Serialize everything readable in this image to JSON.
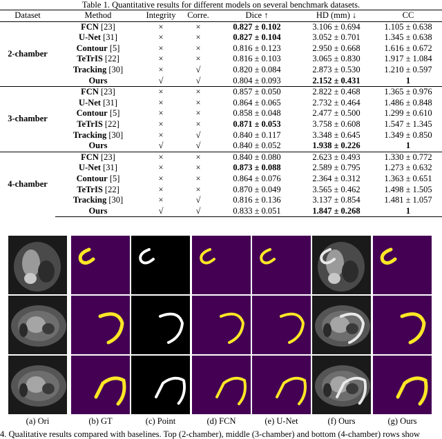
{
  "table_caption": "Table 1. Quantitative results for different models on several benchmark datasets.",
  "headers": [
    "Dataset",
    "Method",
    "Integrity",
    "Corre.",
    "Dice ↑",
    "HD (mm) ↓",
    "CC"
  ],
  "groups": [
    {
      "dataset": "2-chamber",
      "rows": [
        {
          "method": "FCN",
          "ref": "[23]",
          "integrity": "×",
          "corre": "×",
          "dice": "0.827 ± 0.102",
          "dice_bold": true,
          "hd": "3.106 ± 0.694",
          "hd_bold": false,
          "cc": "1.105 ± 0.638",
          "cc_bold": false
        },
        {
          "method": "U-Net",
          "ref": "[31]",
          "integrity": "×",
          "corre": "×",
          "dice": "0.827 ± 0.104",
          "dice_bold": true,
          "hd": "3.052 ± 0.701",
          "hd_bold": false,
          "cc": "1.345 ± 0.638",
          "cc_bold": false
        },
        {
          "method": "Contour",
          "ref": "[5]",
          "integrity": "×",
          "corre": "×",
          "dice": "0.816 ± 0.123",
          "dice_bold": false,
          "hd": "2.950 ± 0.668",
          "hd_bold": false,
          "cc": "1.616 ± 0.672",
          "cc_bold": false
        },
        {
          "method": "TeTrIS",
          "ref": "[22]",
          "integrity": "×",
          "corre": "×",
          "dice": "0.816 ± 0.103",
          "dice_bold": false,
          "hd": "3.065 ± 0.830",
          "hd_bold": false,
          "cc": "1.917 ± 1.084",
          "cc_bold": false
        },
        {
          "method": "Tracking",
          "ref": "[30]",
          "integrity": "×",
          "corre": "√",
          "dice": "0.820 ± 0.084",
          "dice_bold": false,
          "hd": "2.873 ± 0.530",
          "hd_bold": false,
          "cc": "1.210 ± 0.597",
          "cc_bold": false
        },
        {
          "method": "Ours",
          "ref": "",
          "integrity": "√",
          "corre": "√",
          "dice": "0.804 ± 0.093",
          "dice_bold": false,
          "hd": "2.152 ± 0.431",
          "hd_bold": true,
          "cc": "1",
          "cc_bold": true
        }
      ]
    },
    {
      "dataset": "3-chamber",
      "rows": [
        {
          "method": "FCN",
          "ref": "[23]",
          "integrity": "×",
          "corre": "×",
          "dice": "0.857 ± 0.050",
          "dice_bold": false,
          "hd": "2.822 ± 0.468",
          "hd_bold": false,
          "cc": "1.365 ± 0.976",
          "cc_bold": false
        },
        {
          "method": "U-Net",
          "ref": "[31]",
          "integrity": "×",
          "corre": "×",
          "dice": "0.864 ± 0.065",
          "dice_bold": false,
          "hd": "2.732 ± 0.464",
          "hd_bold": false,
          "cc": "1.486 ± 0.848",
          "cc_bold": false
        },
        {
          "method": "Contour",
          "ref": "[5]",
          "integrity": "×",
          "corre": "×",
          "dice": "0.858 ± 0.048",
          "dice_bold": false,
          "hd": "2.477 ± 0.500",
          "hd_bold": false,
          "cc": "1.299 ± 0.610",
          "cc_bold": false
        },
        {
          "method": "TeTrIS",
          "ref": "[22]",
          "integrity": "×",
          "corre": "×",
          "dice": "0.871 ± 0.053",
          "dice_bold": true,
          "hd": "3.758 ± 0.608",
          "hd_bold": false,
          "cc": "1.547 ± 1.345",
          "cc_bold": false
        },
        {
          "method": "Tracking",
          "ref": "[30]",
          "integrity": "×",
          "corre": "√",
          "dice": "0.840 ± 0.117",
          "dice_bold": false,
          "hd": "3.348 ± 0.645",
          "hd_bold": false,
          "cc": "1.349 ± 0.850",
          "cc_bold": false
        },
        {
          "method": "Ours",
          "ref": "",
          "integrity": "√",
          "corre": "√",
          "dice": "0.840 ± 0.052",
          "dice_bold": false,
          "hd": "1.938 ± 0.226",
          "hd_bold": true,
          "cc": "1",
          "cc_bold": true
        }
      ]
    },
    {
      "dataset": "4-chamber",
      "rows": [
        {
          "method": "FCN",
          "ref": "[23]",
          "integrity": "×",
          "corre": "×",
          "dice": "0.840 ± 0.080",
          "dice_bold": false,
          "hd": "2.623 ± 0.493",
          "hd_bold": false,
          "cc": "1.330 ± 0.772",
          "cc_bold": false
        },
        {
          "method": "U-Net",
          "ref": "[31]",
          "integrity": "×",
          "corre": "×",
          "dice": "0.873 ± 0.088",
          "dice_bold": true,
          "hd": "2.589 ± 0.795",
          "hd_bold": false,
          "cc": "1.273 ± 0.632",
          "cc_bold": false
        },
        {
          "method": "Contour",
          "ref": "[5]",
          "integrity": "×",
          "corre": "×",
          "dice": "0.864 ± 0.076",
          "dice_bold": false,
          "hd": "2.364 ± 0.312",
          "hd_bold": false,
          "cc": "1.363 ± 0.651",
          "cc_bold": false
        },
        {
          "method": "TeTrIS",
          "ref": "[22]",
          "integrity": "×",
          "corre": "×",
          "dice": "0.870 ± 0.049",
          "dice_bold": false,
          "hd": "3.565 ± 0.462",
          "hd_bold": false,
          "cc": "1.498 ± 1.505",
          "cc_bold": false
        },
        {
          "method": "Tracking",
          "ref": "[30]",
          "integrity": "×",
          "corre": "√",
          "dice": "0.816 ± 0.136",
          "dice_bold": false,
          "hd": "3.137 ± 0.854",
          "hd_bold": false,
          "cc": "1.481 ± 1.057",
          "cc_bold": false
        },
        {
          "method": "Ours",
          "ref": "",
          "integrity": "√",
          "corre": "√",
          "dice": "0.833 ± 0.051",
          "dice_bold": false,
          "hd": "1.847 ± 0.268",
          "hd_bold": true,
          "cc": "1",
          "cc_bold": true
        }
      ]
    }
  ],
  "figure": {
    "labels": [
      "(a) Ori",
      "(b) GT",
      "(c) Point",
      "(d) FCN",
      "(e) U-Net",
      "(f) Ours",
      "(g) Ours"
    ],
    "caption": "4. Qualitative results compared with baselines. Top (2-chamber), middle (3-chamber) and bottom (4-chamber) rows show",
    "colors": {
      "mask_bg": "#440154",
      "mask_fg": "#fde725",
      "point_bg": "#000000",
      "point_fg": "#ffffff"
    }
  }
}
